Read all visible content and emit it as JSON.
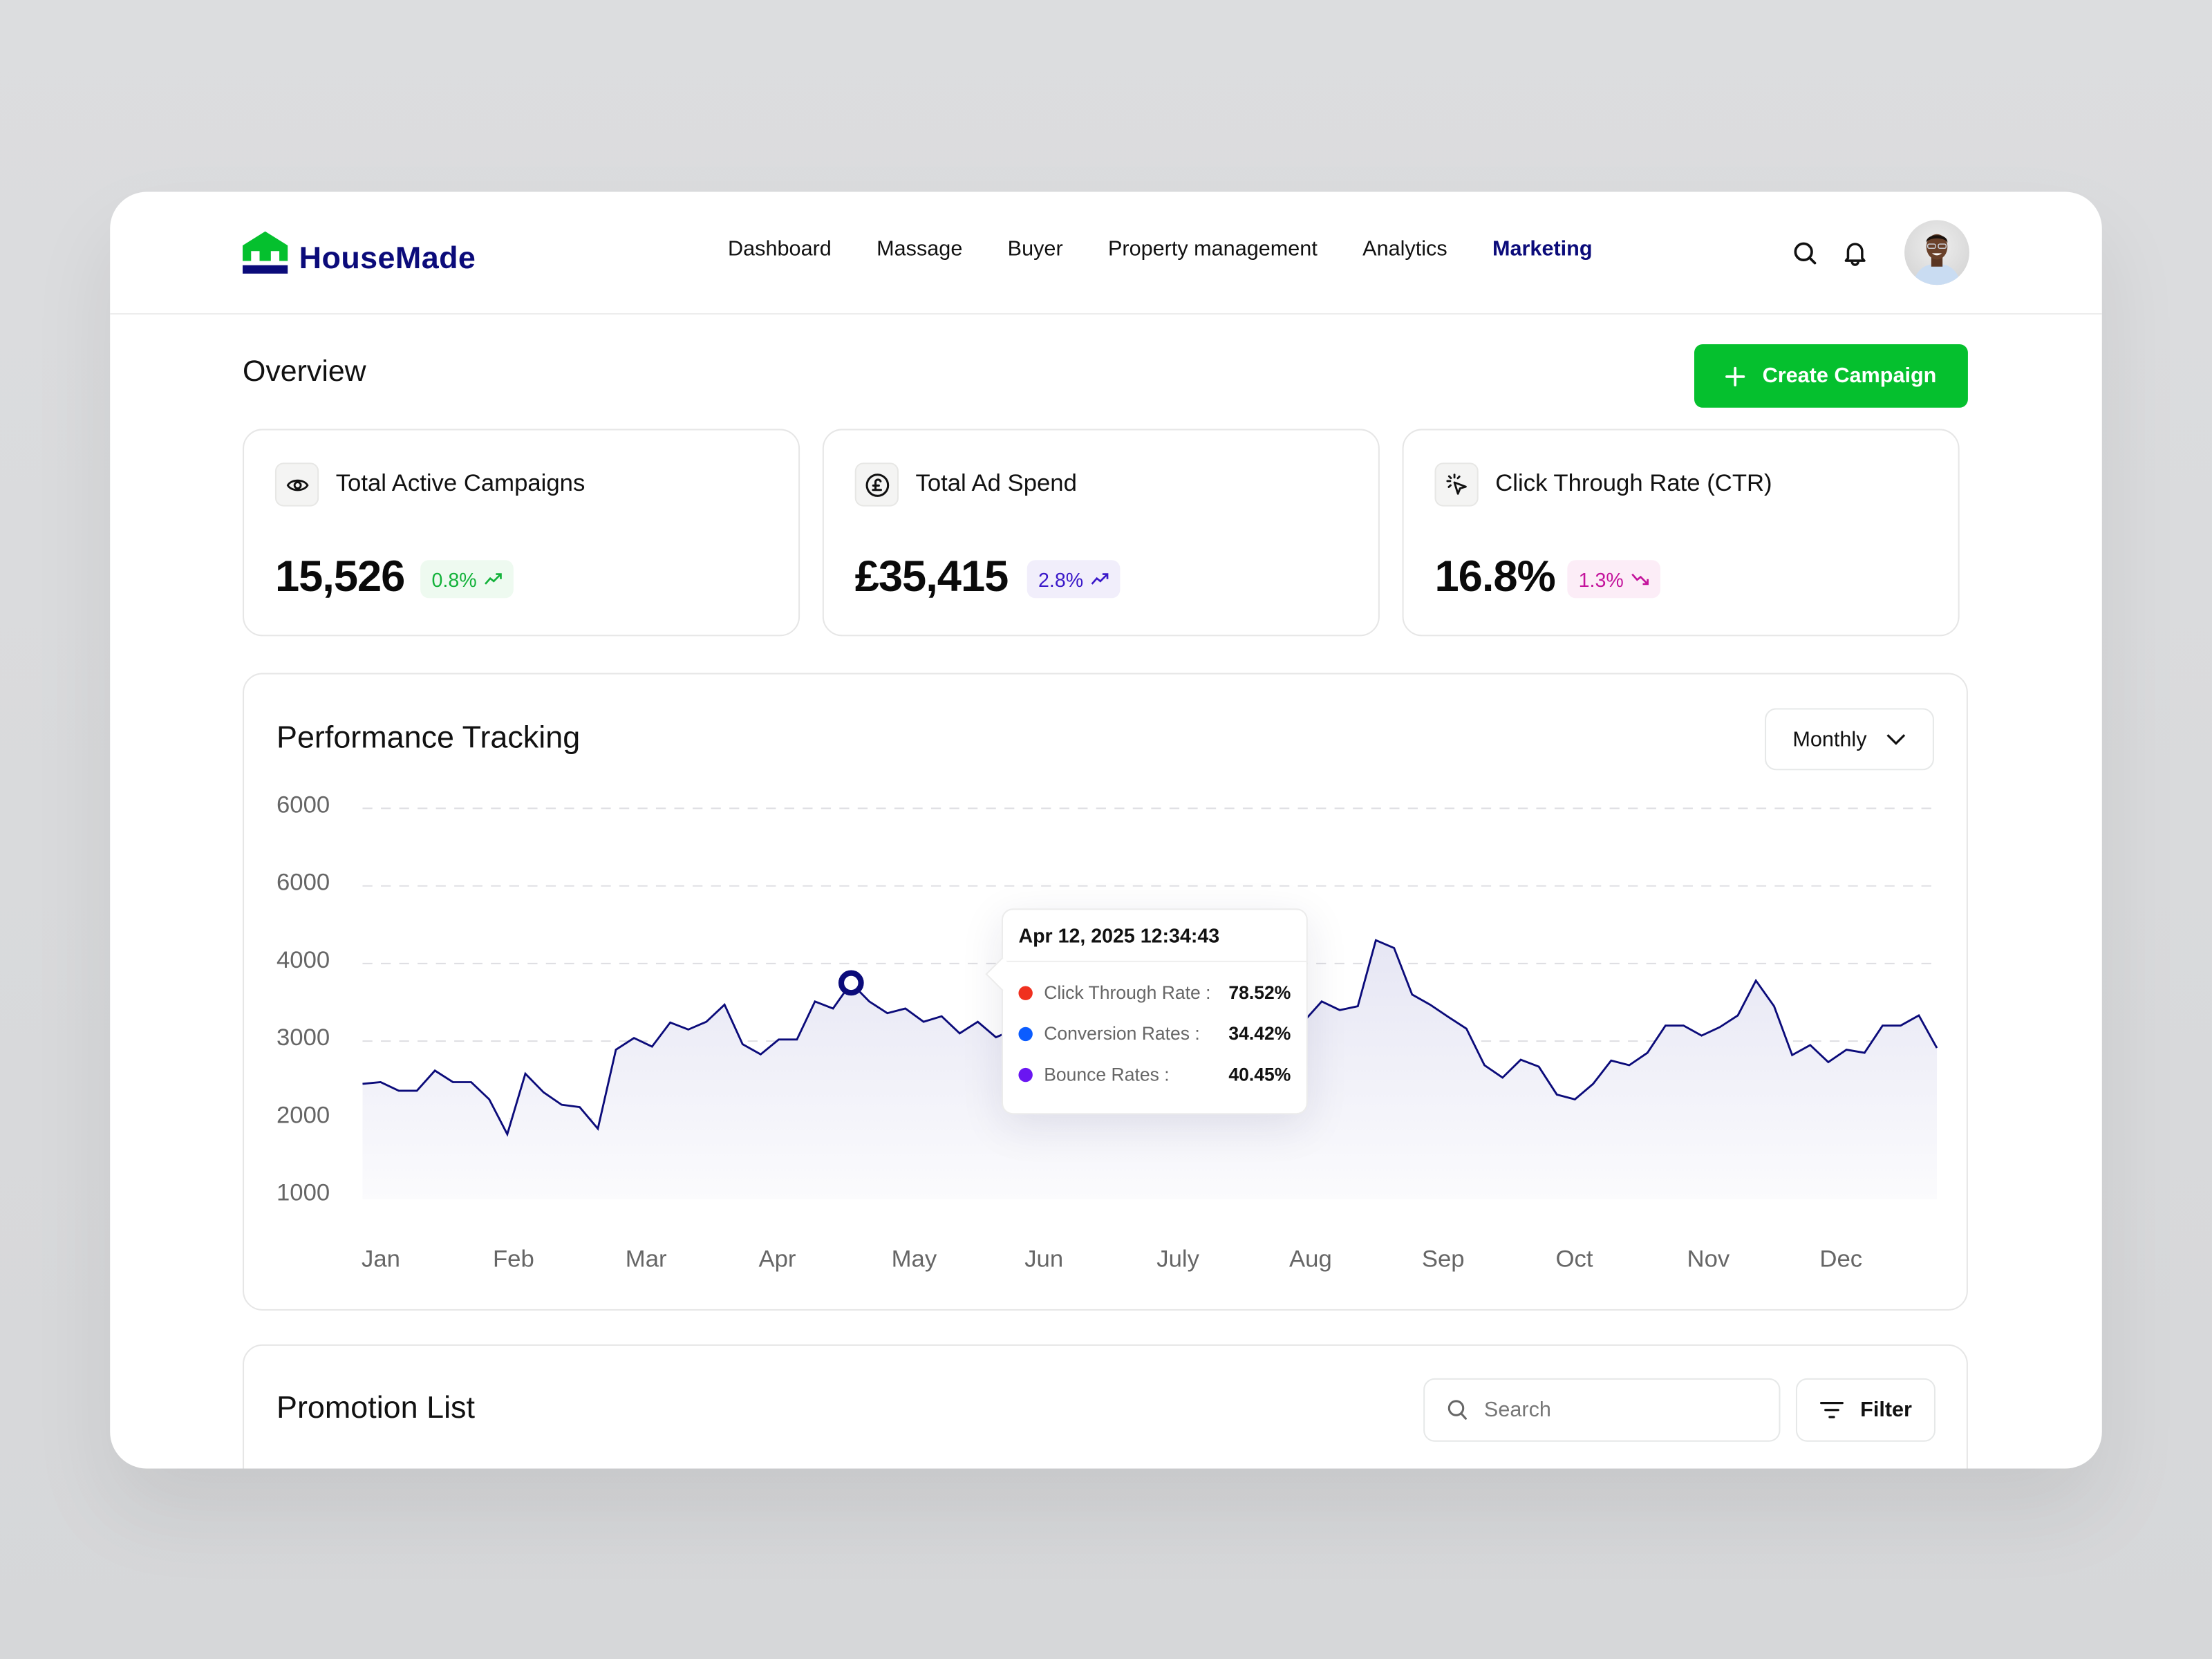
{
  "brand": {
    "name": "HouseMade",
    "primary_color": "#0b0b7a",
    "accent_color": "#05c02e"
  },
  "nav": {
    "items": [
      {
        "label": "Dashboard",
        "active": false
      },
      {
        "label": "Massage",
        "active": false
      },
      {
        "label": "Buyer",
        "active": false
      },
      {
        "label": "Property management",
        "active": false
      },
      {
        "label": "Analytics",
        "active": false
      },
      {
        "label": "Marketing",
        "active": true
      }
    ],
    "icons": [
      "search-icon",
      "bell-icon"
    ],
    "avatar": "user-avatar"
  },
  "overview": {
    "title": "Overview",
    "create_button": {
      "label": "Create Campaign",
      "icon": "plus-icon"
    }
  },
  "stats": [
    {
      "title": "Total Active Campaigns",
      "icon": "eye-icon",
      "value": "15,526",
      "change": "0.8%",
      "trend": "up",
      "badge_bg": "#eefaf0",
      "badge_color": "#13b23a"
    },
    {
      "title": "Total Ad Spend",
      "icon": "pound-coin-icon",
      "value": "£35,415",
      "change": "2.8%",
      "trend": "up",
      "badge_bg": "#f1eefb",
      "badge_color": "#3a18c9"
    },
    {
      "title": "Click Through Rate (CTR)",
      "icon": "cursor-click-icon",
      "value": "16.8%",
      "change": "1.3%",
      "trend": "down",
      "badge_bg": "#fcedf7",
      "badge_color": "#c4149c"
    }
  ],
  "performance": {
    "title": "Performance Tracking",
    "period_select": "Monthly",
    "tooltip": {
      "timestamp": "Apr 12, 2025 12:34:43",
      "rows": [
        {
          "label": "Click Through Rate :",
          "value": "78.52%",
          "color": "#f0301f"
        },
        {
          "label": "Conversion Rates :",
          "value": "34.42%",
          "color": "#0b5cff"
        },
        {
          "label": "Bounce Rates :",
          "value": "40.45%",
          "color": "#6a16f2"
        }
      ]
    }
  },
  "chart_data": {
    "type": "area",
    "title": "Performance Tracking",
    "xlabel": "",
    "ylabel": "",
    "y_tick_labels": [
      "6000",
      "6000",
      "4000",
      "3000",
      "2000",
      "1000"
    ],
    "ylim": [
      1000,
      6000
    ],
    "categories": [
      "Jan",
      "Feb",
      "Mar",
      "Apr",
      "May",
      "Jun",
      "July",
      "Aug",
      "Sep",
      "Oct",
      "Nov",
      "Dec"
    ],
    "grid": true,
    "line_color": "#0b0b7a",
    "highlight": {
      "x_index": 27,
      "label": "Apr 12, 2025 12:34:43"
    },
    "series": [
      {
        "name": "Performance",
        "values": [
          2450,
          2470,
          2360,
          2360,
          2620,
          2470,
          2470,
          2250,
          1800,
          2580,
          2340,
          2180,
          2150,
          1870,
          2890,
          3040,
          2930,
          3240,
          3150,
          3250,
          3470,
          2960,
          2830,
          3020,
          3020,
          3510,
          3420,
          3750,
          3510,
          3360,
          3420,
          3250,
          3320,
          3100,
          3250,
          3050,
          3150,
          3000,
          3200,
          3050,
          2950,
          3100,
          3150,
          3200,
          3130,
          2650,
          2440,
          2910,
          3020,
          3580,
          2830,
          3160,
          3250,
          3510,
          3400,
          3450,
          4300,
          4200,
          3600,
          3470,
          3310,
          3160,
          2690,
          2530,
          2760,
          2670,
          2310,
          2250,
          2450,
          2750,
          2690,
          2850,
          3200,
          3200,
          3070,
          3180,
          3330,
          3780,
          3450,
          2820,
          2950,
          2730,
          2890,
          2850,
          3200,
          3200,
          3330,
          2910
        ]
      }
    ]
  },
  "promotion_list": {
    "title": "Promotion List",
    "search_placeholder": "Search",
    "filter_label": "Filter"
  }
}
